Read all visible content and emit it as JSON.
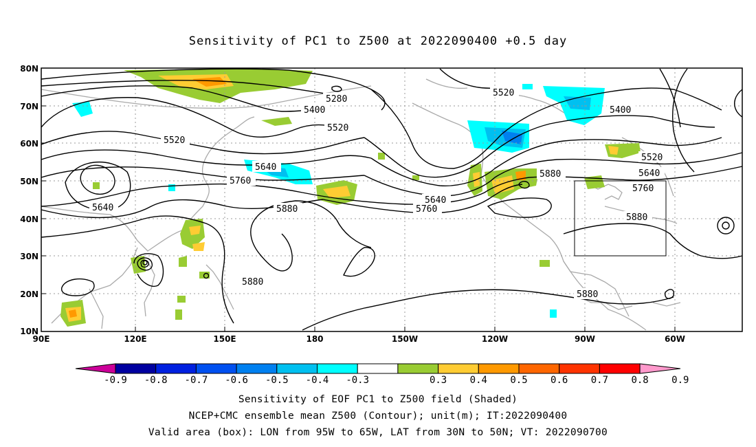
{
  "title": "Sensitivity of PC1 to Z500 at 2022090400 +0.5 day",
  "lat_labels": [
    "80N",
    "70N",
    "60N",
    "50N",
    "40N",
    "30N",
    "20N",
    "10N"
  ],
  "lon_labels": [
    "90E",
    "120E",
    "150E",
    "180",
    "150W",
    "120W",
    "90W",
    "60W"
  ],
  "contour_labels": [
    {
      "text": "5280"
    },
    {
      "text": "5400"
    },
    {
      "text": "5520"
    },
    {
      "text": "5520"
    },
    {
      "text": "5640"
    },
    {
      "text": "5760"
    },
    {
      "text": "5640"
    },
    {
      "text": "5880"
    },
    {
      "text": "5880"
    },
    {
      "text": "5640"
    },
    {
      "text": "5760"
    },
    {
      "text": "5520"
    },
    {
      "text": "5400"
    },
    {
      "text": "5520"
    },
    {
      "text": "5640"
    },
    {
      "text": "5760"
    },
    {
      "text": "5880"
    },
    {
      "text": "5880"
    },
    {
      "text": "5880"
    }
  ],
  "colorbar": {
    "colors": [
      "#0000a0",
      "#0020e0",
      "#0050f0",
      "#0080f0",
      "#00c0f0",
      "#00ffff",
      "#ffffff",
      "#99cc33",
      "#ffcc33",
      "#ff9900",
      "#ff6600",
      "#ff3300",
      "#ff0000"
    ],
    "low_end_color": "#cc0099",
    "high_end_color": "#ff99cc",
    "labels": [
      "-0.9",
      "-0.8",
      "-0.7",
      "-0.6",
      "-0.5",
      "-0.4",
      "-0.3",
      "0.3",
      "0.4",
      "0.5",
      "0.6",
      "0.7",
      "0.8",
      "0.9"
    ]
  },
  "captions": [
    "Sensitivity of EOF PC1 to Z500 field (Shaded)",
    "NCEP+CMC ensemble mean Z500 (Contour); unit(m); IT:2022090400",
    "Valid area (box): LON from 95W to 65W, LAT from 30N to 50N; VT: 2022090700"
  ]
}
